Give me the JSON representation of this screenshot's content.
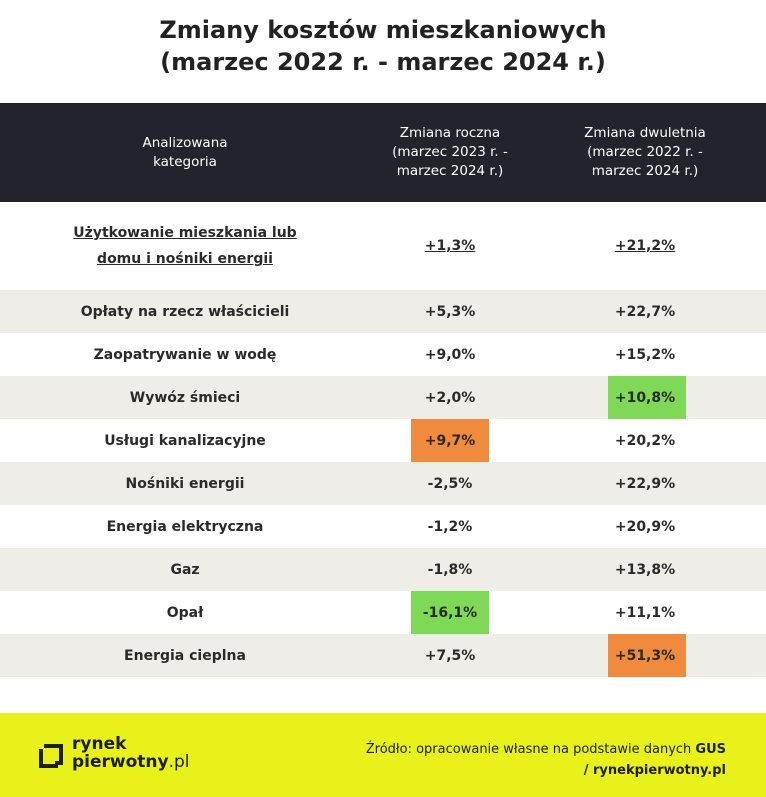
{
  "title": {
    "line1": "Zmiany kosztów mieszkaniowych",
    "line2": "(marzec 2022 r. - marzec 2024 r.)"
  },
  "colors": {
    "header_bg": "#23242b",
    "alt_row_bg": "#efede8",
    "highlight_orange": "#f08a3c",
    "highlight_green": "#7ed957",
    "footer_bg": "#e8f21a"
  },
  "chart_data": {
    "type": "table",
    "columns": [
      "Analizowana\nkategoria",
      "Zmiana roczna\n(marzec 2023 r. -\nmarzec 2024 r.)",
      "Zmiana dwuletnia\n(marzec 2022 r. -\nmarzec 2024 r.)"
    ],
    "rows": [
      {
        "category": "Użytkowanie mieszkania lub\ndomu i nośniki energii",
        "annual": "+1,3%",
        "biennial": "+21,2%",
        "annual_hl": null,
        "biennial_hl": null,
        "alt": false,
        "main": true
      },
      {
        "category": "Opłaty na rzecz właścicieli",
        "annual": "+5,3%",
        "biennial": "+22,7%",
        "annual_hl": null,
        "biennial_hl": null,
        "alt": true,
        "main": false
      },
      {
        "category": "Zaopatrywanie w wodę",
        "annual": "+9,0%",
        "biennial": "+15,2%",
        "annual_hl": null,
        "biennial_hl": null,
        "alt": false,
        "main": false
      },
      {
        "category": "Wywóz śmieci",
        "annual": "+2,0%",
        "biennial": "+10,8%",
        "annual_hl": null,
        "biennial_hl": "green",
        "alt": true,
        "main": false
      },
      {
        "category": "Usługi kanalizacyjne",
        "annual": "+9,7%",
        "biennial": "+20,2%",
        "annual_hl": "orange",
        "biennial_hl": null,
        "alt": false,
        "main": false
      },
      {
        "category": "Nośniki energii",
        "annual": "-2,5%",
        "biennial": "+22,9%",
        "annual_hl": null,
        "biennial_hl": null,
        "alt": true,
        "main": false
      },
      {
        "category": "Energia elektryczna",
        "annual": "-1,2%",
        "biennial": "+20,9%",
        "annual_hl": null,
        "biennial_hl": null,
        "alt": false,
        "main": false
      },
      {
        "category": "Gaz",
        "annual": "-1,8%",
        "biennial": "+13,8%",
        "annual_hl": null,
        "biennial_hl": null,
        "alt": true,
        "main": false
      },
      {
        "category": "Opał",
        "annual": "-16,1%",
        "biennial": "+11,1%",
        "annual_hl": "green",
        "biennial_hl": null,
        "alt": false,
        "main": false
      },
      {
        "category": "Energia cieplna",
        "annual": "+7,5%",
        "biennial": "+51,3%",
        "annual_hl": null,
        "biennial_hl": "orange",
        "alt": true,
        "main": false
      }
    ]
  },
  "footer": {
    "logo_line1": "rynek",
    "logo_line2_bold": "pierwotny",
    "logo_line2_tail": ".pl",
    "source_prefix": "Źródło: opracowanie własne na podstawie danych ",
    "source_bold": "GUS",
    "source_line2": "/ rynekpierwotny.pl"
  }
}
